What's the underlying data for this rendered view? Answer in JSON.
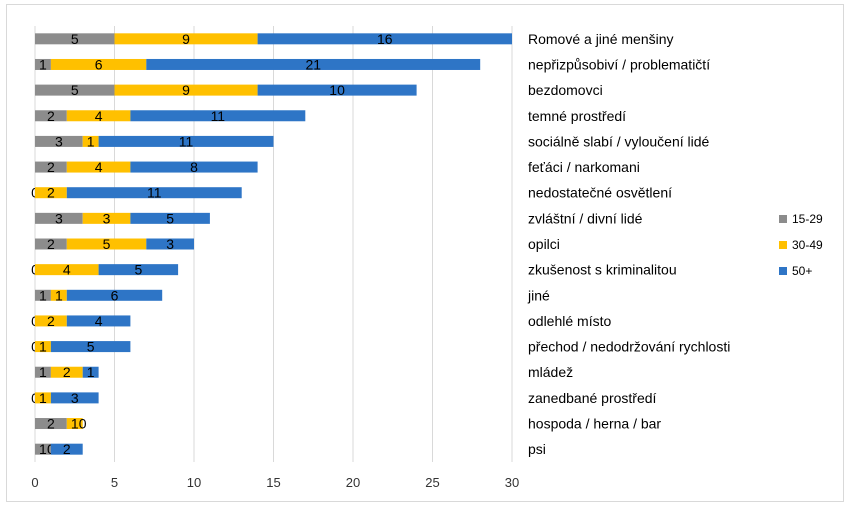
{
  "chart_data": {
    "type": "bar",
    "orientation": "horizontal",
    "stacked": true,
    "categories": [
      "Romové a jiné menšiny",
      "nepřizpůsobiví / problematičtí",
      "bezdomovci",
      "temné prostředí",
      "sociálně slabí /  vyloučení lidé",
      "feťáci / narkomani",
      "nedostatečné osvětlení",
      "zvláštní / divní lidé",
      "opilci",
      "zkušenost s kriminalitou",
      "jiné",
      "odlehlé místo",
      "přechod / nedodržování rychlosti",
      "mládež",
      "zanedbané prostředí",
      "hospoda / herna / bar",
      "psi"
    ],
    "series": [
      {
        "name": "15-29",
        "color": "#8c8c8c",
        "values": [
          5,
          1,
          5,
          2,
          3,
          2,
          0,
          3,
          2,
          0,
          1,
          0,
          0,
          1,
          0,
          2,
          1
        ]
      },
      {
        "name": "30-49",
        "color": "#ffc000",
        "values": [
          9,
          6,
          9,
          4,
          1,
          4,
          2,
          3,
          5,
          4,
          1,
          2,
          1,
          2,
          1,
          1,
          0
        ]
      },
      {
        "name": "50+",
        "color": "#2e75c6",
        "values": [
          16,
          21,
          10,
          11,
          11,
          8,
          11,
          5,
          3,
          5,
          6,
          4,
          5,
          1,
          3,
          0,
          2
        ]
      }
    ],
    "xlim": [
      0,
      30
    ],
    "xticks": [
      0,
      5,
      10,
      15,
      20,
      25,
      30
    ],
    "grid": true,
    "legend_position": "right",
    "title": "",
    "xlabel": "",
    "ylabel": ""
  }
}
